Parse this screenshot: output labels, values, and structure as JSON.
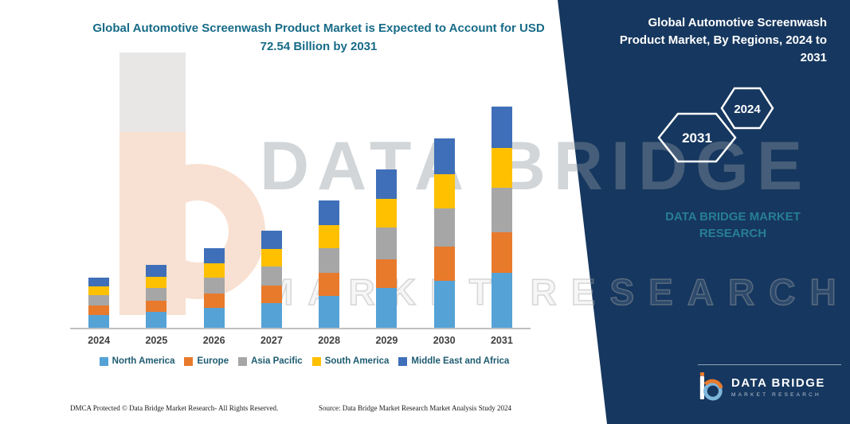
{
  "header": {
    "left_title": "Global Automotive Screenwash Product Market is Expected to Account for USD 72.54 Billion by 2031",
    "right_title": "Global Automotive Screenwash Product Market, By Regions, 2024 to 2031"
  },
  "badges": {
    "left_year": "2031",
    "right_year": "2024"
  },
  "panel": {
    "brand": "DATA BRIDGE MARKET RESEARCH"
  },
  "watermark": {
    "line1": "DATA BRIDGE",
    "line2": "MARKET RESEARCH"
  },
  "chart_data": {
    "type": "bar",
    "stacked": true,
    "title": "Global Automotive Screenwash Product Market, By Regions, 2024 to 2031",
    "units": "USD Billion",
    "categories": [
      "2024",
      "2025",
      "2026",
      "2027",
      "2028",
      "2029",
      "2030",
      "2031"
    ],
    "series": [
      {
        "name": "North America",
        "color": "#55A2D6",
        "values": [
          4.2,
          5.2,
          6.5,
          8.0,
          10.4,
          13.0,
          15.5,
          18.1
        ]
      },
      {
        "name": "Europe",
        "color": "#E87A2C",
        "values": [
          3.0,
          3.7,
          4.7,
          5.7,
          7.5,
          9.4,
          11.2,
          13.1
        ]
      },
      {
        "name": "Asia Pacific",
        "color": "#A6A6A6",
        "values": [
          3.4,
          4.2,
          5.2,
          6.4,
          8.3,
          10.4,
          12.4,
          14.6
        ]
      },
      {
        "name": "South America",
        "color": "#FFC000",
        "values": [
          3.0,
          3.7,
          4.7,
          5.7,
          7.5,
          9.4,
          11.2,
          13.1
        ]
      },
      {
        "name": "Middle East and Africa",
        "color": "#3F6FB8",
        "values": [
          2.8,
          3.9,
          4.9,
          6.0,
          7.9,
          9.8,
          11.8,
          13.6
        ]
      }
    ],
    "totals_estimated": [
      16.4,
      20.7,
      26.0,
      31.8,
      41.6,
      52.0,
      62.1,
      72.5
    ],
    "ylim": [
      0,
      78
    ],
    "grid": false,
    "legend_position": "bottom"
  },
  "footer": {
    "left": "DMCA Protected © Data Bridge Market Research-  All Rights Reserved.",
    "source": "Source: Data Bridge Market Research  Market Analysis Study 2024"
  },
  "logo": {
    "name": "DATA BRIDGE",
    "sub": "MARKET RESEARCH"
  },
  "colors": {
    "panel_navy": "#16375F",
    "title_teal": "#176B87",
    "brand_teal": "#277E95",
    "axis_gray": "#C0C0C0",
    "xlabel_gray": "#3F3F3F",
    "legend_teal": "#1D5B70"
  }
}
